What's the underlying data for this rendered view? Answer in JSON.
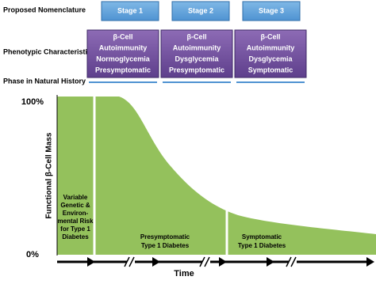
{
  "labels": {
    "nomenclature": "Proposed Nomenclature",
    "phenotype": "Phenotypic Characteristics",
    "phase": "Phase in Natural History"
  },
  "stages": [
    "Stage 1",
    "Stage  2",
    "Stage  3"
  ],
  "phenotypes": [
    [
      "β-Cell",
      "Autoimmunity",
      "Normoglycemia",
      "Presymptomatic"
    ],
    [
      "β-Cell",
      "Autoimmunity",
      "Dysglycemia",
      "Presymptomatic"
    ],
    [
      "β-Cell",
      "Autoimmunity",
      "Dysglycemia",
      "Symptomatic"
    ]
  ],
  "chart": {
    "y_axis_label": "Functional β-Cell Mass",
    "y_max_label": "100%",
    "y_min_label": "0%",
    "x_axis_label": "Time",
    "regions": [
      [
        "Variable",
        "Genetic &",
        "Environ-",
        "mental Risk",
        "for Type 1",
        "Diabetes"
      ],
      [
        "Presymptomatic",
        "Type 1 Diabetes"
      ],
      [
        "Symptomatic",
        "Type 1 Diabetes"
      ]
    ]
  }
}
